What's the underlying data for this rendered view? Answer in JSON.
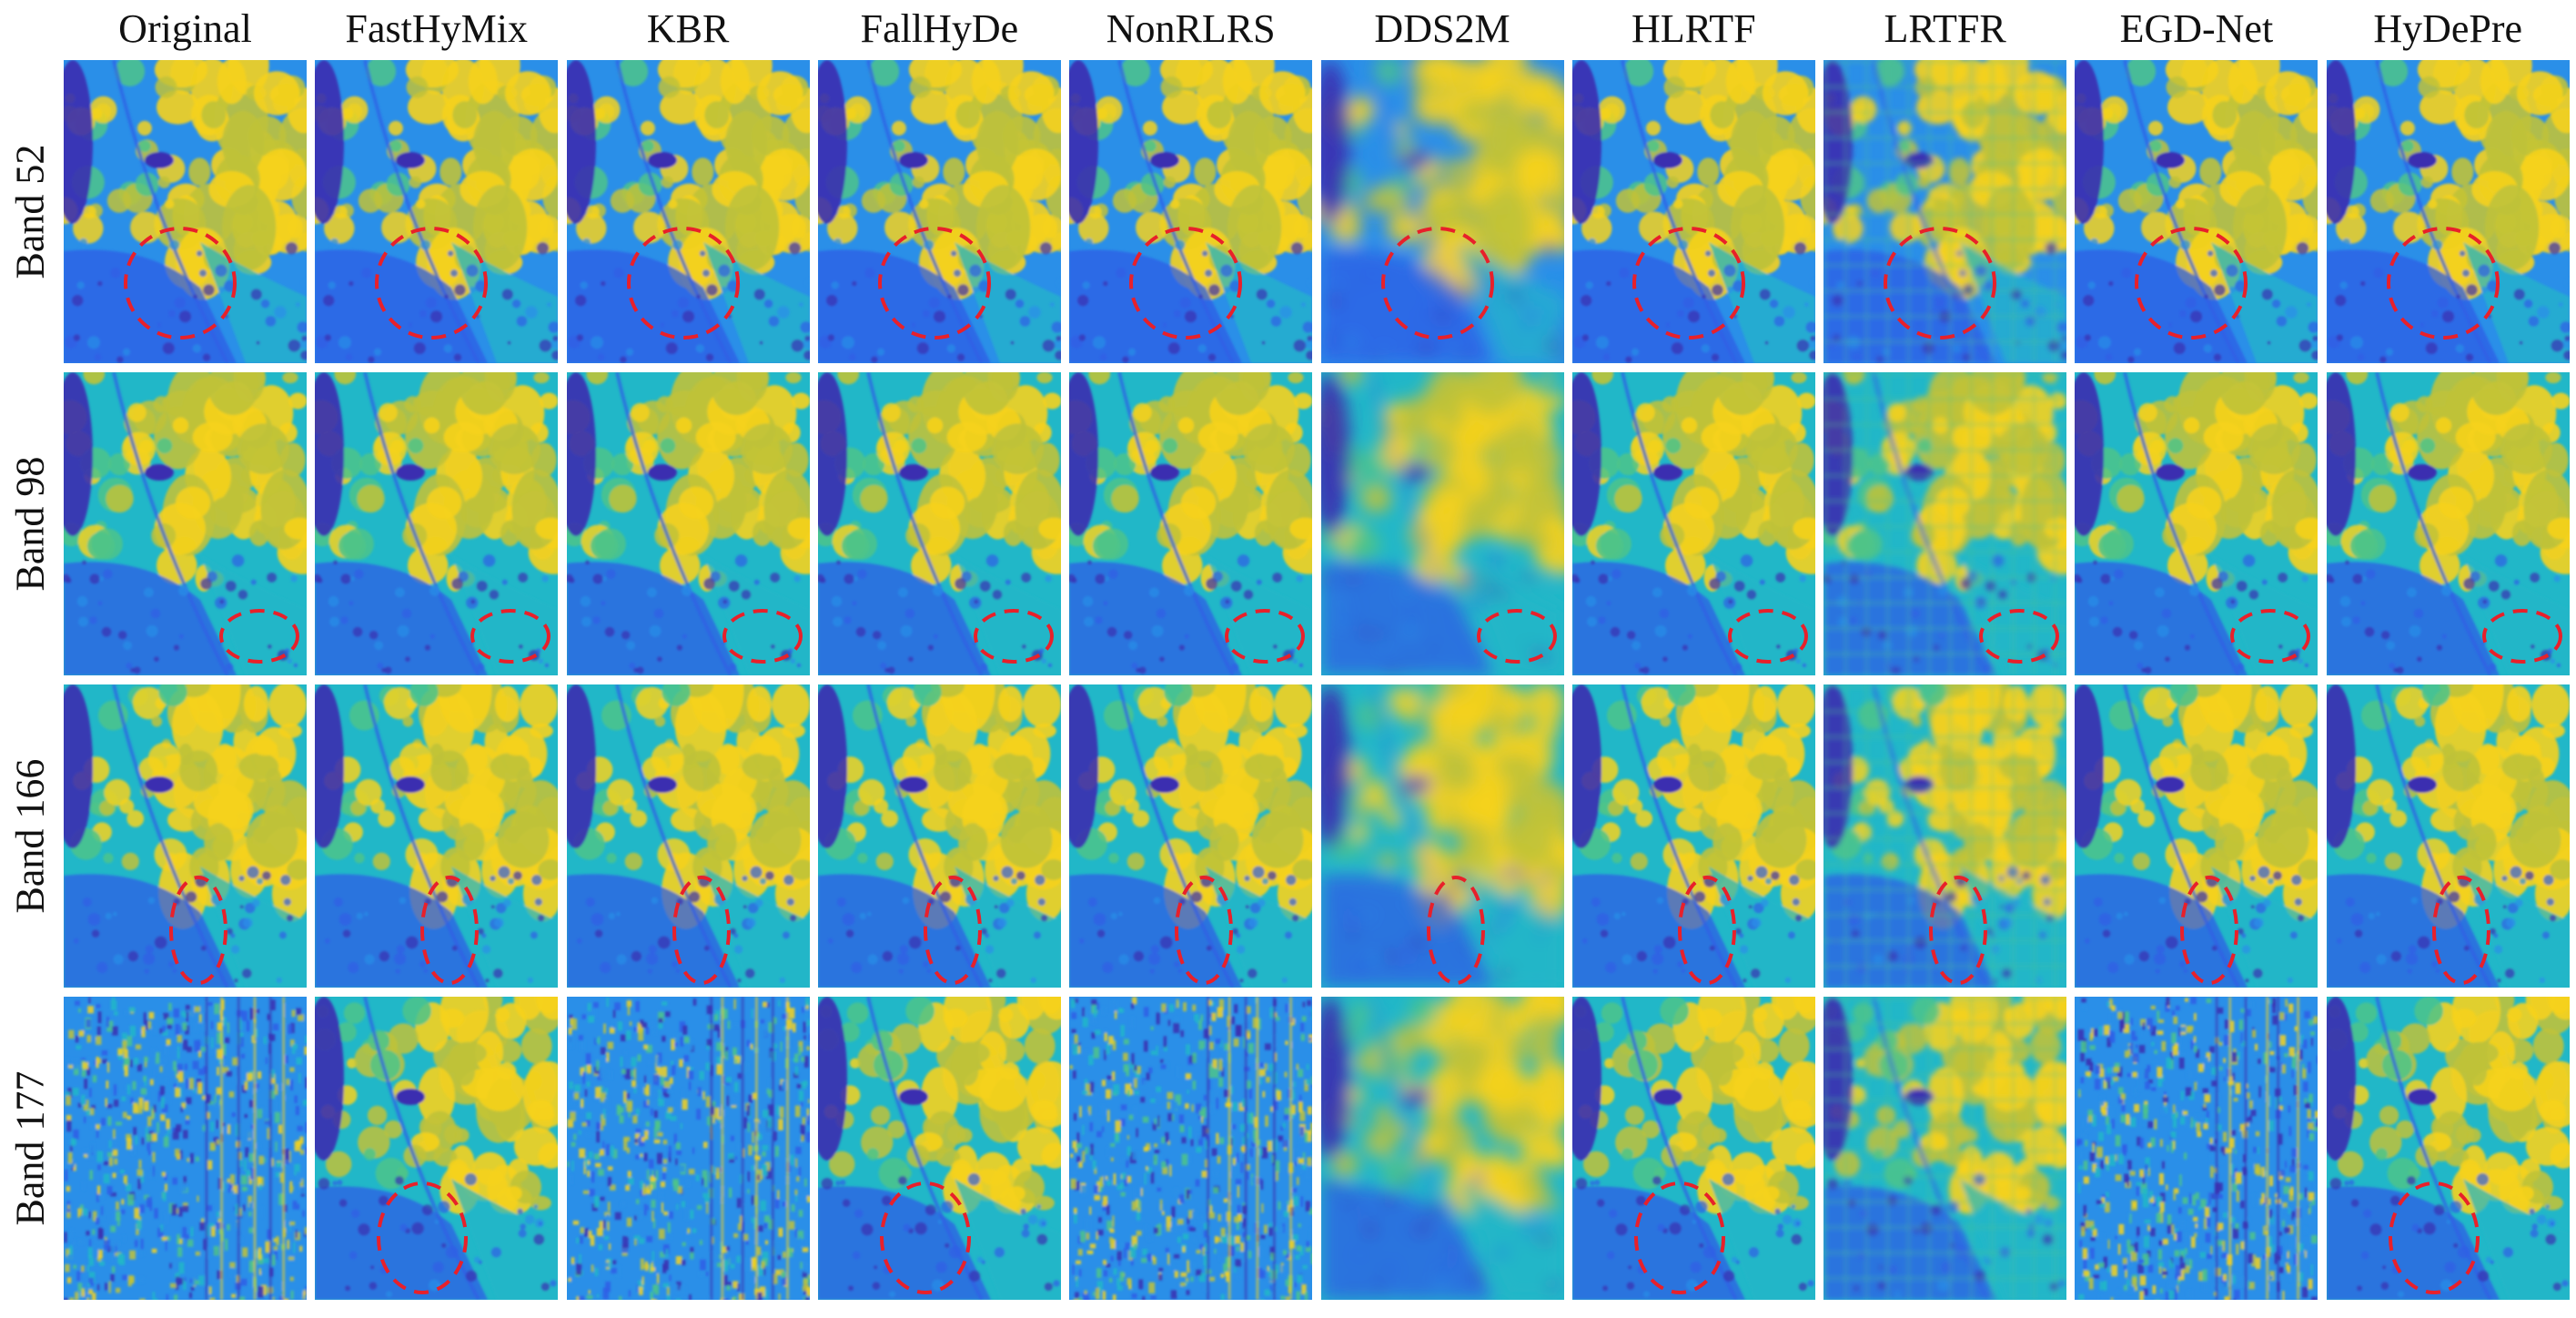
{
  "figure": {
    "columns": [
      "Original",
      "FastHyMix",
      "KBR",
      "FallHyDe",
      "NonRLRS",
      "DDS2M",
      "HLRTF",
      "LRTFR",
      "EGD-Net",
      "HyDePre"
    ],
    "rows": [
      "Band 52",
      "Band 98",
      "Band 166",
      "Band 177"
    ],
    "colormap": [
      "#3b2fb0",
      "#2f5ee6",
      "#2a8fe8",
      "#21b7c8",
      "#4ec48a",
      "#bfc23a",
      "#f5d21d"
    ],
    "highlight_color": "#e8202a"
  }
}
